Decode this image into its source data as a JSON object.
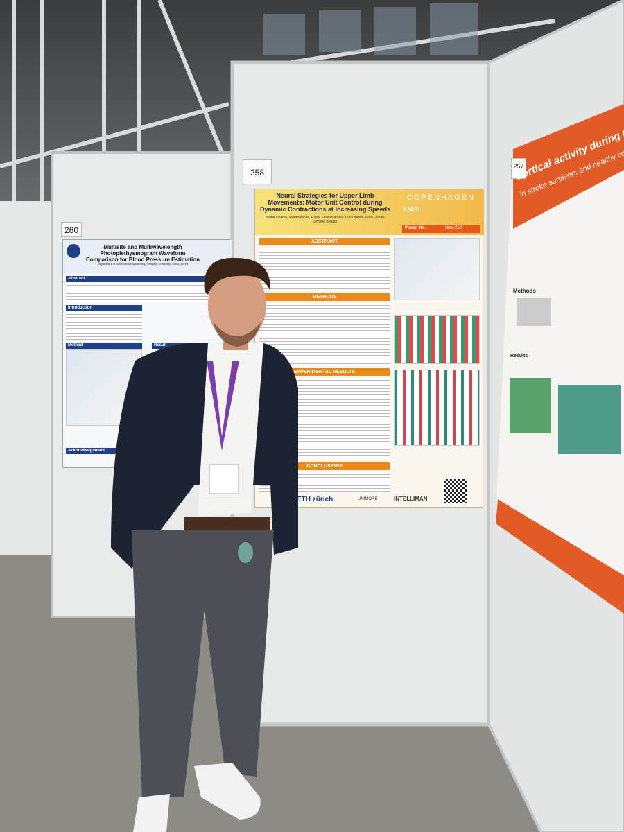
{
  "signs": {
    "center": "258",
    "left": "260",
    "right": "257"
  },
  "center_poster": {
    "title": "Neural Strategies for Upper Limb Movements: Motor Unit Control during Dynamic Contractions at Increasing Speeds",
    "authors": "Mattia Orlandi, Pierangelo M. Rapa, Farah Baracat, Luca Benini, Elisa Donati, Simone Benatti",
    "conference": "COPENHAGEN",
    "society": "EMBS",
    "poster_label": "Poster No.",
    "poster_number": "Wed-258",
    "sections": [
      "Abstract",
      "Methods",
      "Experimental Results",
      "Conclusions"
    ],
    "logos": [
      "ETH zürich",
      "UNIMORE",
      "INTELLIMAN"
    ]
  },
  "left_poster": {
    "title": "Multisite and Multiwavelength Photoplethysmogram Waveform Comparison for Blood Pressure Estimation",
    "affiliation": "Department of Biomedical Engineering, Hanyang University, Seoul, Korea",
    "sections": [
      "Abstract",
      "Introduction",
      "Method",
      "Result",
      "Acknowledgement"
    ]
  },
  "right_poster": {
    "title": "Cortical activity during the sit-to-stand trans",
    "subtitle": "in stroke survivors and healthy controls",
    "sections": [
      "Methods",
      "Results"
    ]
  }
}
